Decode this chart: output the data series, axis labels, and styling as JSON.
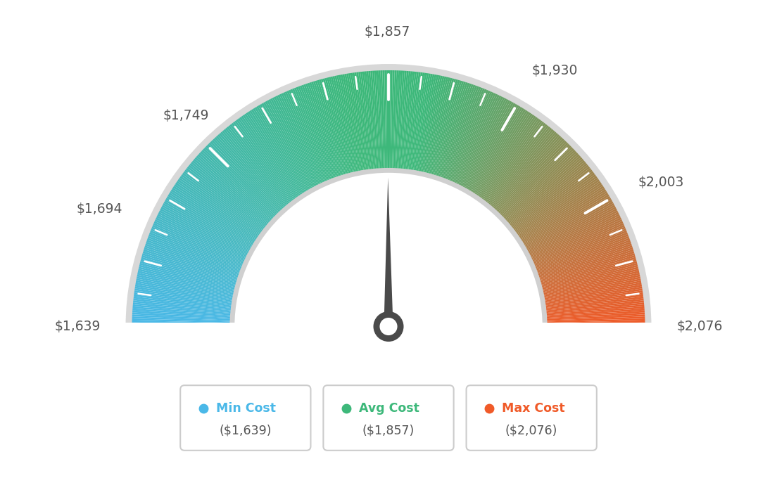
{
  "min_val": 1639,
  "max_val": 2076,
  "avg_val": 1857,
  "labels": [
    "$1,639",
    "$1,694",
    "$1,749",
    "$1,857",
    "$1,930",
    "$2,003",
    "$2,076"
  ],
  "label_values": [
    1639,
    1694,
    1749,
    1857,
    1930,
    2003,
    2076
  ],
  "min_cost_label": "Min Cost",
  "avg_cost_label": "Avg Cost",
  "max_cost_label": "Max Cost",
  "min_cost_val": "($1,639)",
  "avg_cost_val": "($1,857)",
  "max_cost_val": "($2,076)",
  "min_color": "#4ab8e8",
  "avg_color": "#3db87a",
  "max_color": "#f05a28",
  "background_color": "#ffffff",
  "needle_color": "#555555",
  "text_color": "#555555"
}
